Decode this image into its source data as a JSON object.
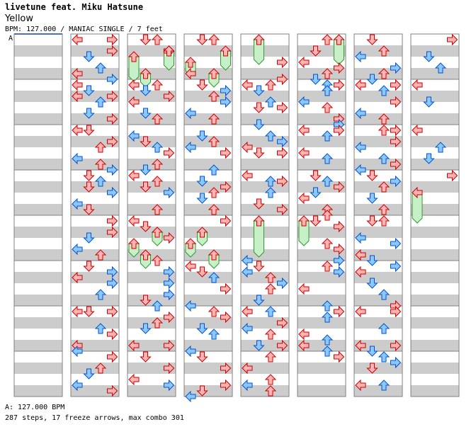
{
  "header": {
    "artist": "livetune feat. Miku Hatsune",
    "title": "Yellow",
    "info": "BPM: 127.000 / MANIAC SINGLE / 7 feet"
  },
  "footer": {
    "bpm_line": "A: 127.000 BPM",
    "summary": "287 steps, 17 freeze arrows, max combo 301"
  },
  "marker_label": "A",
  "colors": {
    "stripe": "#cccccc",
    "border": "#808080",
    "marker_line": "#4a6fc4",
    "red_fill": "#ffb3b3",
    "red_stroke": "#cc0000",
    "blue_fill": "#8cc8ff",
    "blue_stroke": "#0055cc",
    "freeze_fill": "#c8f0c8",
    "freeze_stroke": "#339933"
  },
  "icons": {
    "left": "arrow-left-icon",
    "down": "arrow-down-icon",
    "up": "arrow-up-icon",
    "right": "arrow-right-icon",
    "freeze": "freeze-arrow-icon"
  }
}
